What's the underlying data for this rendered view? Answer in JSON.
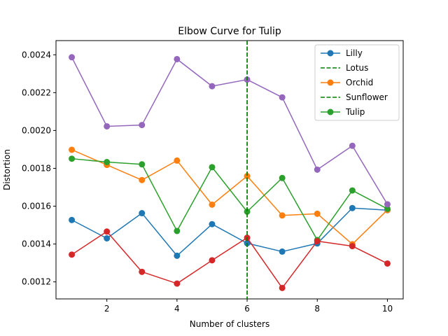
{
  "chart_data": {
    "type": "line",
    "title": "Elbow Curve for Tulip",
    "xlabel": "Number of clusters",
    "ylabel": "Distortion",
    "xlim": [
      0.55,
      10.45
    ],
    "ylim": [
      0.00111,
      0.002475
    ],
    "xticks": [
      2,
      4,
      6,
      8,
      10
    ],
    "yticks": [
      0.0012,
      0.0014,
      0.0016,
      0.0018,
      0.002,
      0.0022,
      0.0024
    ],
    "ytick_labels": [
      "0.0012",
      "0.0014",
      "0.0016",
      "0.0018",
      "0.0020",
      "0.0022",
      "0.0024"
    ],
    "grid": false,
    "legend_position": "upper right",
    "x": [
      1,
      2,
      3,
      4,
      5,
      6,
      7,
      8,
      9,
      10
    ],
    "series": [
      {
        "name": "Lilly",
        "color": "#1f77b4",
        "in_legend": true,
        "values": [
          0.001527,
          0.00143,
          0.001563,
          0.001338,
          0.001505,
          0.001404,
          0.00136,
          0.001403,
          0.00159,
          0.001579
        ]
      },
      {
        "name": "Orchid",
        "color": "#ff7f0e",
        "in_legend": true,
        "values": [
          0.001898,
          0.001818,
          0.001738,
          0.001841,
          0.001608,
          0.001759,
          0.001551,
          0.00156,
          0.001399,
          0.00158
        ]
      },
      {
        "name": "Tulip",
        "color": "#2ca02c",
        "in_legend": true,
        "values": [
          0.001851,
          0.001833,
          0.001821,
          0.001469,
          0.001806,
          0.001571,
          0.001749,
          0.001421,
          0.001683,
          0.001586
        ]
      },
      {
        "name": "",
        "color": "#d62728",
        "in_legend": false,
        "values": [
          0.001344,
          0.001466,
          0.001253,
          0.001191,
          0.001314,
          0.001433,
          0.001168,
          0.001415,
          0.001389,
          0.001297
        ]
      },
      {
        "name": "",
        "color": "#9467bd",
        "in_legend": false,
        "values": [
          0.002387,
          0.002022,
          0.002029,
          0.002377,
          0.002234,
          0.002269,
          0.002175,
          0.001793,
          0.001919,
          0.00161
        ]
      }
    ],
    "vlines": [
      {
        "name": "Lotus",
        "x": 6,
        "color": "#008000",
        "style": "dashed"
      },
      {
        "name": "Sunflower",
        "x": 6,
        "color": "#008000",
        "style": "dashed"
      }
    ],
    "legend_entries": [
      {
        "label": "Lilly",
        "kind": "line",
        "color": "#1f77b4"
      },
      {
        "label": "Lotus",
        "kind": "dashed",
        "color": "#008000"
      },
      {
        "label": "Orchid",
        "kind": "line",
        "color": "#ff7f0e"
      },
      {
        "label": "Sunflower",
        "kind": "dashed",
        "color": "#008000"
      },
      {
        "label": "Tulip",
        "kind": "line",
        "color": "#2ca02c"
      }
    ]
  }
}
